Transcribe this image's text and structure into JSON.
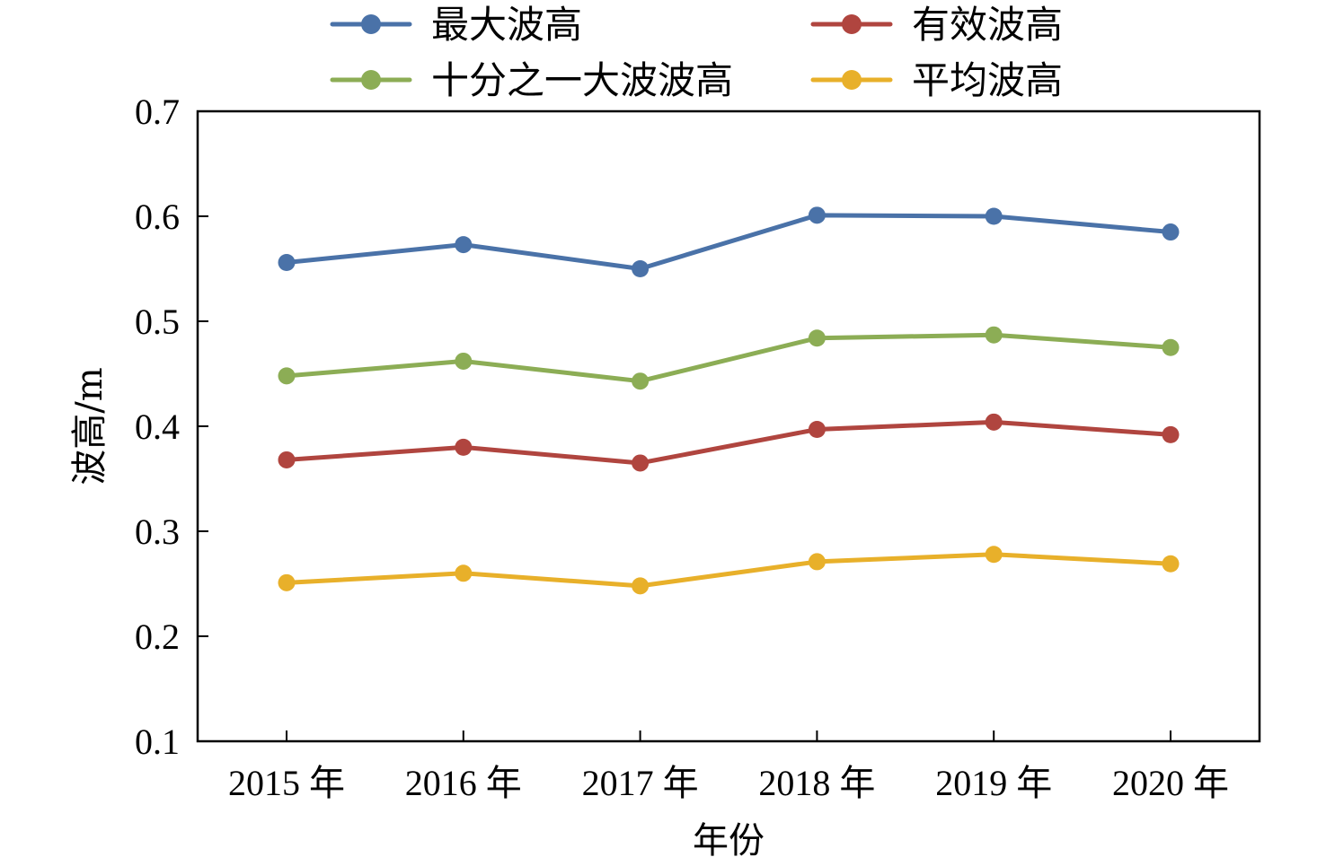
{
  "chart_data": {
    "type": "line",
    "title": "",
    "xlabel": "年份",
    "ylabel": "波高/m",
    "categories": [
      "2015 年",
      "2016 年",
      "2017 年",
      "2018 年",
      "2019 年",
      "2020 年"
    ],
    "ylim": [
      0.1,
      0.7
    ],
    "yticks": [
      "0.1",
      "0.2",
      "0.3",
      "0.4",
      "0.5",
      "0.6",
      "0.7"
    ],
    "grid": false,
    "legend_position": "top",
    "series": [
      {
        "name": "最大波高",
        "color": "#4a72a8",
        "values": [
          0.556,
          0.573,
          0.55,
          0.601,
          0.6,
          0.585
        ]
      },
      {
        "name": "有效波高",
        "color": "#b0453f",
        "values": [
          0.368,
          0.38,
          0.365,
          0.397,
          0.404,
          0.392
        ]
      },
      {
        "name": "十分之一大波波高",
        "color": "#8cad55",
        "values": [
          0.448,
          0.462,
          0.443,
          0.484,
          0.487,
          0.475
        ]
      },
      {
        "name": "平均波高",
        "color": "#e8b02a",
        "values": [
          0.251,
          0.26,
          0.248,
          0.271,
          0.278,
          0.269
        ]
      }
    ]
  }
}
